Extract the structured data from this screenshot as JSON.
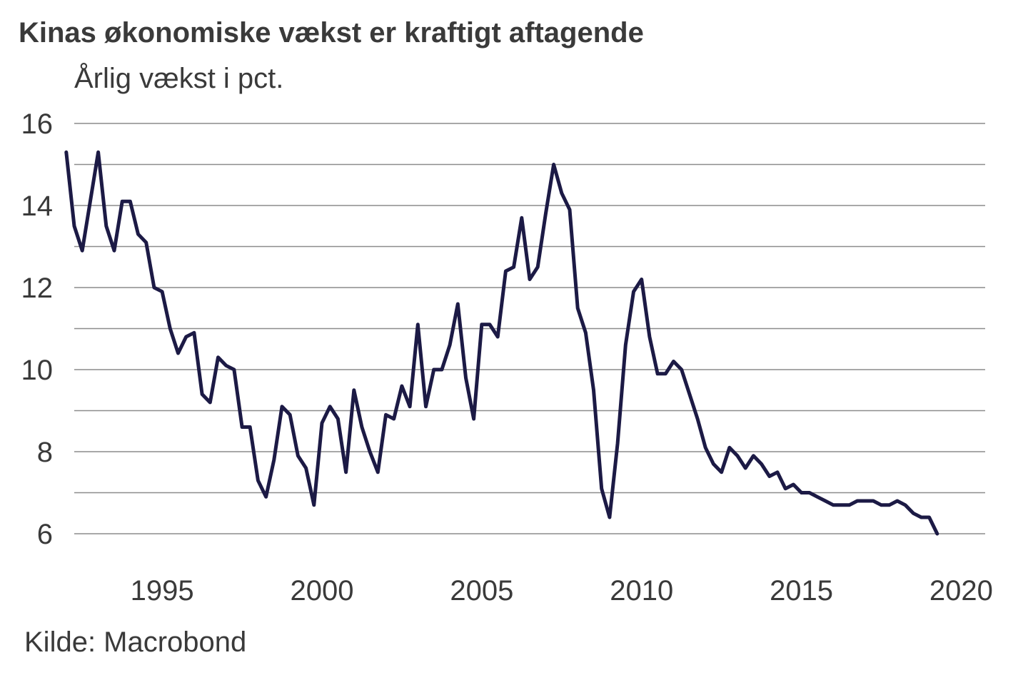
{
  "chart_data": {
    "type": "line",
    "title": "Kinas økonomiske vækst er kraftigt aftagende",
    "subtitle": "Årlig vækst i pct.",
    "source": "Kilde: Macrobond",
    "xlabel": "",
    "ylabel": "Årlig vækst i pct.",
    "xlim": [
      1992.25,
      2020.75
    ],
    "ylim": [
      6,
      16
    ],
    "y_ticks": [
      6,
      8,
      10,
      12,
      14,
      16
    ],
    "x_ticks": [
      1995,
      2000,
      2005,
      2010,
      2015,
      2020
    ],
    "grid": true,
    "line_color": "#1c1a45",
    "series": [
      {
        "name": "Årlig vækst i pct.",
        "x": [
          1992.0,
          1992.25,
          1992.5,
          1992.75,
          1993.0,
          1993.25,
          1993.5,
          1993.75,
          1994.0,
          1994.25,
          1994.5,
          1994.75,
          1995.0,
          1995.25,
          1995.5,
          1995.75,
          1996.0,
          1996.25,
          1996.5,
          1996.75,
          1997.0,
          1997.25,
          1997.5,
          1997.75,
          1998.0,
          1998.25,
          1998.5,
          1998.75,
          1999.0,
          1999.25,
          1999.5,
          1999.75,
          2000.0,
          2000.25,
          2000.5,
          2000.75,
          2001.0,
          2001.25,
          2001.5,
          2001.75,
          2002.0,
          2002.25,
          2002.5,
          2002.75,
          2003.0,
          2003.25,
          2003.5,
          2003.75,
          2004.0,
          2004.25,
          2004.5,
          2004.75,
          2005.0,
          2005.25,
          2005.5,
          2005.75,
          2006.0,
          2006.25,
          2006.5,
          2006.75,
          2007.0,
          2007.25,
          2007.5,
          2007.75,
          2008.0,
          2008.25,
          2008.5,
          2008.75,
          2009.0,
          2009.25,
          2009.5,
          2009.75,
          2010.0,
          2010.25,
          2010.5,
          2010.75,
          2011.0,
          2011.25,
          2011.5,
          2011.75,
          2012.0,
          2012.25,
          2012.5,
          2012.75,
          2013.0,
          2013.25,
          2013.5,
          2013.75,
          2014.0,
          2014.25,
          2014.5,
          2014.75,
          2015.0,
          2015.25,
          2015.5,
          2015.75,
          2016.0,
          2016.25,
          2016.5,
          2016.75,
          2017.0,
          2017.25,
          2017.5,
          2017.75,
          2018.0,
          2018.25,
          2018.5,
          2018.75,
          2019.0,
          2019.25
        ],
        "values": [
          15.3,
          13.5,
          12.9,
          14.1,
          15.3,
          13.5,
          12.9,
          14.1,
          14.1,
          13.3,
          13.1,
          12.0,
          11.9,
          11.0,
          10.4,
          10.8,
          10.9,
          9.4,
          9.2,
          10.3,
          10.1,
          10.0,
          8.6,
          8.6,
          7.3,
          6.9,
          7.8,
          9.1,
          8.9,
          7.9,
          7.6,
          6.7,
          8.7,
          9.1,
          8.8,
          7.5,
          9.5,
          8.6,
          8.0,
          7.5,
          8.9,
          8.8,
          9.6,
          9.1,
          11.1,
          9.1,
          10.0,
          10.0,
          10.6,
          11.6,
          9.8,
          8.8,
          11.1,
          11.1,
          10.8,
          12.4,
          12.5,
          13.7,
          12.2,
          12.5,
          13.8,
          15.0,
          14.3,
          13.9,
          11.5,
          10.9,
          9.5,
          7.1,
          6.4,
          8.2,
          10.6,
          11.9,
          12.2,
          10.8,
          9.9,
          9.9,
          10.2,
          10.0,
          9.4,
          8.8,
          8.1,
          7.7,
          7.5,
          8.1,
          7.9,
          7.6,
          7.9,
          7.7,
          7.4,
          7.5,
          7.1,
          7.2,
          7.0,
          7.0,
          6.9,
          6.8,
          6.7,
          6.7,
          6.7,
          6.8,
          6.8,
          6.8,
          6.7,
          6.7,
          6.8,
          6.7,
          6.5,
          6.4,
          6.4,
          6.0
        ]
      }
    ]
  }
}
